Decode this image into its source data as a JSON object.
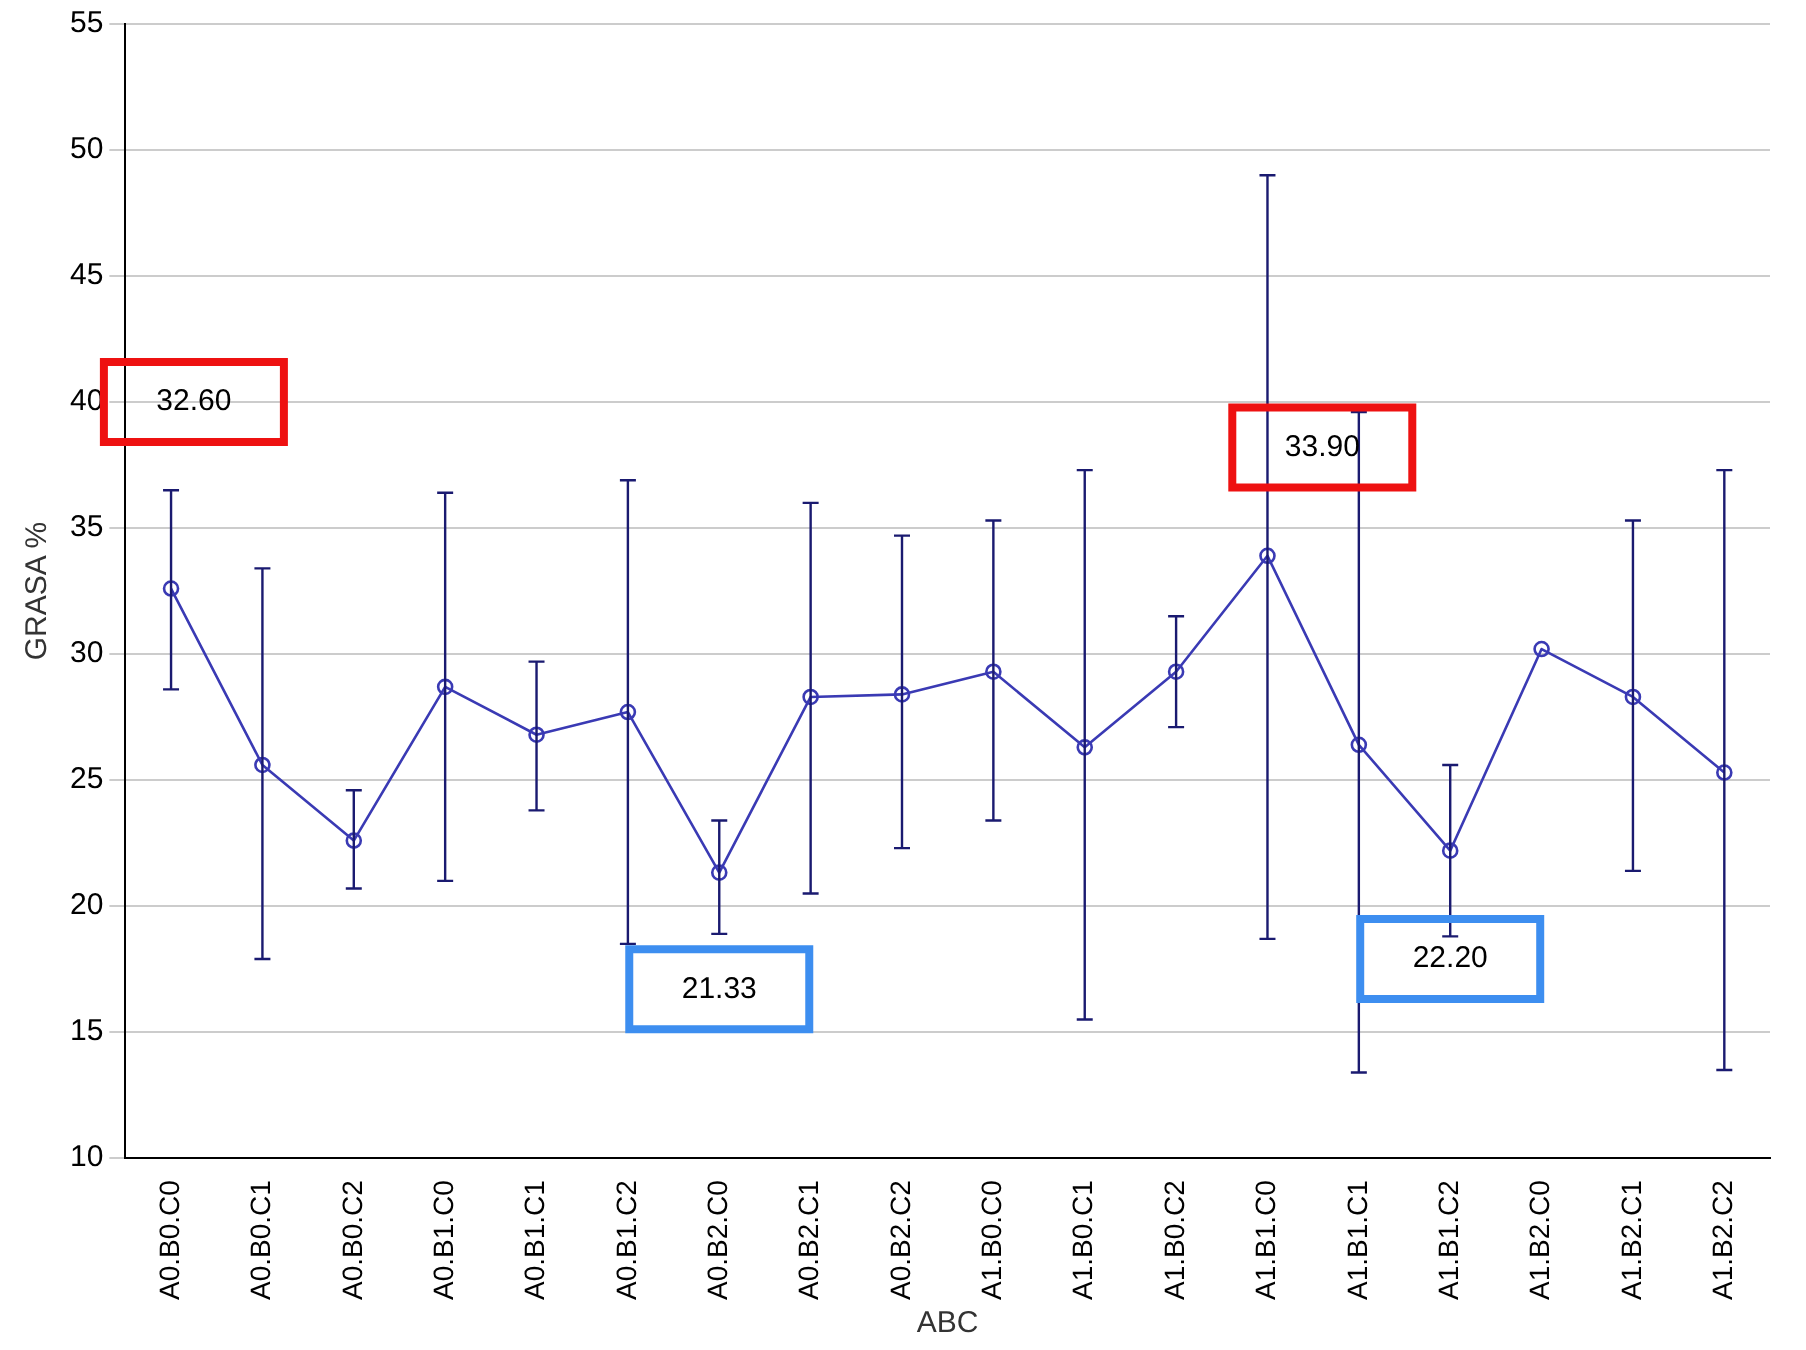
{
  "chart_data": {
    "type": "line",
    "xlabel": "ABC",
    "ylabel": "GRASA %",
    "categories": [
      "A0.B0.C0",
      "A0.B0.C1",
      "A0.B0.C2",
      "A0.B1.C0",
      "A0.B1.C1",
      "A0.B1.C2",
      "A0.B2.C0",
      "A0.B2.C1",
      "A0.B2.C2",
      "A1.B0.C0",
      "A1.B0.C1",
      "A1.B0.C2",
      "A1.B1.C0",
      "A1.B1.C1",
      "A1.B1.C2",
      "A1.B2.C0",
      "A1.B2.C1",
      "A1.B2.C2"
    ],
    "series": [
      {
        "color": "#3a3ab4",
        "values": [
          32.6,
          25.6,
          22.6,
          28.7,
          26.8,
          27.7,
          21.33,
          28.3,
          28.4,
          29.3,
          26.3,
          29.3,
          33.9,
          26.4,
          22.2,
          30.2,
          28.3,
          25.3
        ],
        "errors": [
          [
            28.6,
            36.5
          ],
          [
            17.9,
            33.4
          ],
          [
            20.7,
            24.6
          ],
          [
            21.0,
            36.4
          ],
          [
            23.8,
            29.7
          ],
          [
            18.5,
            36.9
          ],
          [
            18.9,
            23.4
          ],
          [
            20.5,
            36.0
          ],
          [
            22.3,
            34.7
          ],
          [
            23.4,
            35.3
          ],
          [
            15.5,
            37.3
          ],
          [
            27.1,
            31.5
          ],
          [
            18.7,
            49.0
          ],
          [
            13.4,
            39.6
          ],
          [
            18.8,
            25.6
          ],
          null,
          [
            21.4,
            35.3
          ],
          [
            13.5,
            37.3
          ]
        ]
      }
    ],
    "ylim": [
      10,
      55
    ],
    "yticks": [
      10,
      15,
      20,
      25,
      30,
      35,
      40,
      45,
      50,
      55
    ],
    "grid": "y",
    "legend": false,
    "marker": "circle",
    "line_style": "solid",
    "annotations": [
      "32.60",
      "21.33",
      "33.90",
      "22.20"
    ]
  }
}
